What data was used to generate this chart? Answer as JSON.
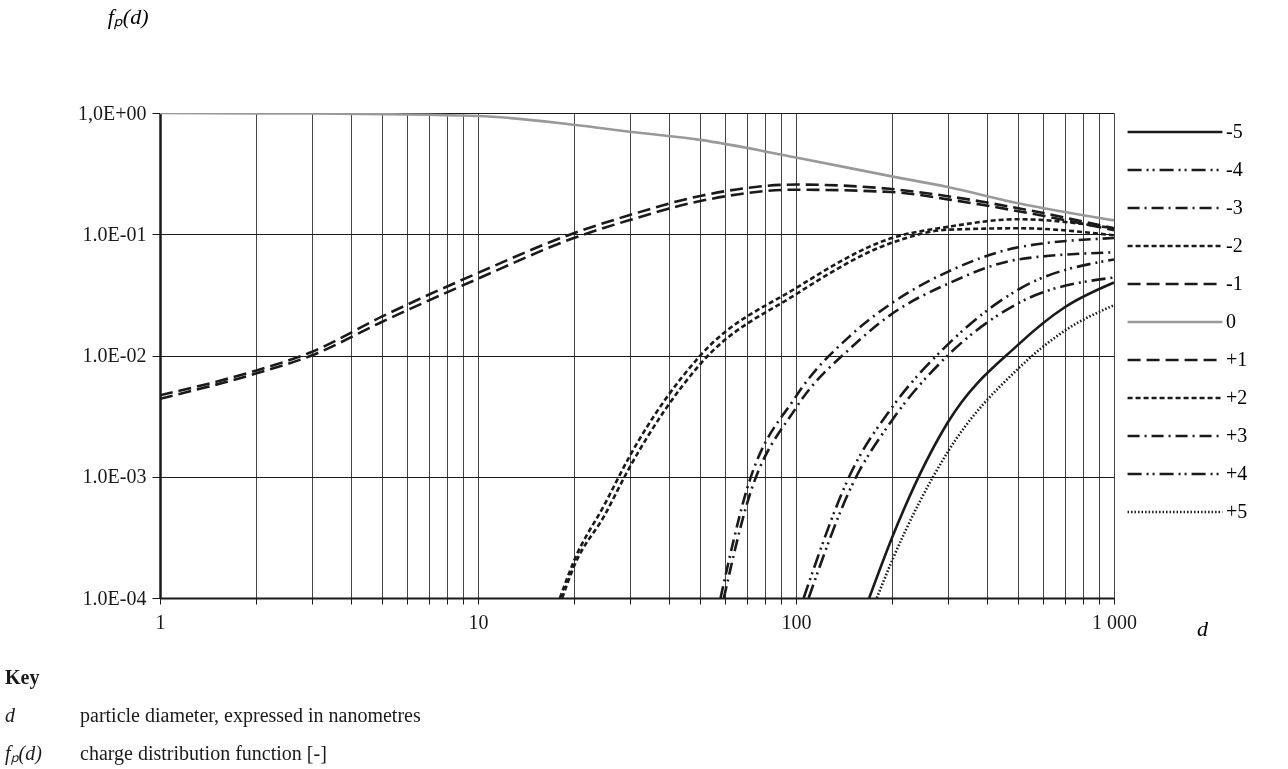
{
  "chart_data": {
    "type": "line",
    "xlabel": "d",
    "ylabel": "fₚ(d)",
    "log": "xy",
    "grid": true,
    "legend": "right",
    "xlim": [
      1,
      1000
    ],
    "ylim": [
      0.0001,
      1
    ],
    "xticks": [
      1,
      {
        "value": 2,
        "label": null
      },
      {
        "value": 3,
        "label": null
      },
      {
        "value": 4,
        "label": null
      },
      {
        "value": 5,
        "label": null
      },
      {
        "value": 6,
        "label": null
      },
      {
        "value": 7,
        "label": null
      },
      {
        "value": 8,
        "label": null
      },
      {
        "value": 9,
        "label": null
      },
      10,
      {
        "value": 20,
        "label": null
      },
      {
        "value": 30,
        "label": null
      },
      {
        "value": 40,
        "label": null
      },
      {
        "value": 50,
        "label": null
      },
      {
        "value": 60,
        "label": null
      },
      {
        "value": 70,
        "label": null
      },
      {
        "value": 80,
        "label": null
      },
      {
        "value": 90,
        "label": null
      },
      100,
      {
        "value": 200,
        "label": null
      },
      {
        "value": 300,
        "label": null
      },
      {
        "value": 400,
        "label": null
      },
      {
        "value": 500,
        "label": null
      },
      {
        "value": 600,
        "label": null
      },
      {
        "value": 700,
        "label": null
      },
      {
        "value": 800,
        "label": null
      },
      {
        "value": 900,
        "label": null
      },
      {
        "value": 1000,
        "label": "1 000"
      }
    ],
    "yticks": [
      {
        "value": 0.0001,
        "label": "1.0E-04"
      },
      {
        "value": 0.001,
        "label": "1.0E-03"
      },
      {
        "value": 0.01,
        "label": "1.0E-02"
      },
      {
        "value": 0.1,
        "label": "1.0E-01"
      },
      {
        "value": 1,
        "label": "1,0E+00"
      }
    ],
    "series": [
      {
        "name": "-5",
        "color": "#1a1a1a",
        "line_style": "solid",
        "x": [
          169.9,
          200,
          300,
          500,
          700,
          1000
        ],
        "values": [
          0.0001,
          0.00031,
          0.0028,
          0.0123,
          0.025,
          0.04
        ]
      },
      {
        "name": "-4",
        "color": "#1a1a1a",
        "line_style": "dashdotdot",
        "x": [
          105.7,
          150,
          200,
          300,
          500,
          1000
        ],
        "values": [
          0.0001,
          0.00112,
          0.0037,
          0.0123,
          0.035,
          0.062
        ]
      },
      {
        "name": "-3",
        "color": "#1a1a1a",
        "line_style": "dashdot",
        "x": [
          57.9,
          70,
          100,
          150,
          200,
          300,
          500,
          1000
        ],
        "values": [
          0.0001,
          0.00078,
          0.0046,
          0.015,
          0.027,
          0.049,
          0.078,
          0.093
        ]
      },
      {
        "name": "-2",
        "color": "#1a1a1a",
        "line_style": "dashed",
        "x": [
          18.1,
          20,
          25,
          30,
          50,
          100,
          200,
          300,
          500,
          1000
        ],
        "values": [
          0.0001,
          0.0002,
          0.00059,
          0.00148,
          0.01,
          0.036,
          0.093,
          0.115,
          0.133,
          0.112
        ]
      },
      {
        "name": "-1",
        "color": "#1a1a1a",
        "line_style": "longdash",
        "x": [
          1,
          2,
          3,
          5,
          10,
          20,
          30,
          50,
          100,
          200,
          300,
          500,
          1000
        ],
        "values": [
          0.0047,
          0.0075,
          0.0107,
          0.021,
          0.048,
          0.102,
          0.144,
          0.207,
          0.257,
          0.236,
          0.206,
          0.164,
          0.112
        ]
      },
      {
        "name": "0",
        "color": "#999999",
        "line_style": "solid",
        "x": [
          1,
          3,
          10,
          20,
          30,
          50,
          100,
          200,
          300,
          500,
          1000
        ],
        "values": [
          1.0,
          0.99,
          0.945,
          0.8,
          0.7,
          0.6,
          0.43,
          0.3,
          0.245,
          0.18,
          0.13
        ]
      },
      {
        "name": "+1",
        "color": "#1a1a1a",
        "line_style": "longdash",
        "x": [
          1,
          2,
          3,
          5,
          10,
          20,
          30,
          50,
          100,
          200,
          300,
          500,
          1000
        ],
        "values": [
          0.0044,
          0.0071,
          0.01,
          0.019,
          0.043,
          0.093,
          0.131,
          0.188,
          0.233,
          0.223,
          0.194,
          0.155,
          0.108
        ]
      },
      {
        "name": "+2",
        "color": "#1a1a1a",
        "line_style": "dashed",
        "x": [
          18.4,
          20,
          25,
          30,
          50,
          100,
          200,
          300,
          500,
          1000
        ],
        "values": [
          0.0001,
          0.00018,
          0.00048,
          0.0012,
          0.0085,
          0.032,
          0.085,
          0.109,
          0.112,
          0.098
        ]
      },
      {
        "name": "+3",
        "color": "#1a1a1a",
        "line_style": "dashdot",
        "x": [
          59.3,
          70,
          100,
          150,
          200,
          300,
          500,
          1000
        ],
        "values": [
          0.0001,
          0.00059,
          0.0037,
          0.0118,
          0.022,
          0.039,
          0.062,
          0.071
        ]
      },
      {
        "name": "+4",
        "color": "#1a1a1a",
        "line_style": "dashdotdot",
        "x": [
          109.6,
          150,
          200,
          300,
          500,
          1000
        ],
        "values": [
          0.0001,
          0.00085,
          0.0029,
          0.01,
          0.027,
          0.044
        ]
      },
      {
        "name": "+5",
        "color": "#1a1a1a",
        "line_style": "dotted",
        "x": [
          179.5,
          200,
          300,
          500,
          700,
          1000
        ],
        "values": [
          0.0001,
          0.0002,
          0.0016,
          0.0078,
          0.016,
          0.026
        ]
      }
    ],
    "annotations": [
      "Key",
      "d particle diameter, expressed in nanometres",
      "fₚ(d) charge distribution function [-]"
    ]
  }
}
